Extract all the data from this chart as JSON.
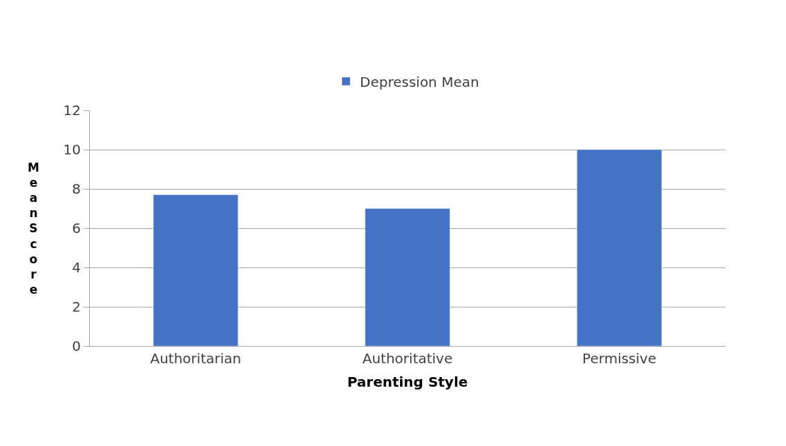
{
  "chart_data": {
    "type": "bar",
    "categories": [
      "Authoritarian",
      "Authoritative",
      "Permissive"
    ],
    "series": [
      {
        "name": "Depression Mean",
        "color": "#4472c4",
        "values": [
          7.7,
          7.0,
          10.0
        ]
      }
    ],
    "xlabel": "Parenting Style",
    "ylabel": "Mean Score",
    "ylim": [
      0,
      12
    ],
    "yticks": [
      0,
      2,
      4,
      6,
      8,
      10,
      12
    ],
    "grid": "y",
    "legend": "top"
  }
}
